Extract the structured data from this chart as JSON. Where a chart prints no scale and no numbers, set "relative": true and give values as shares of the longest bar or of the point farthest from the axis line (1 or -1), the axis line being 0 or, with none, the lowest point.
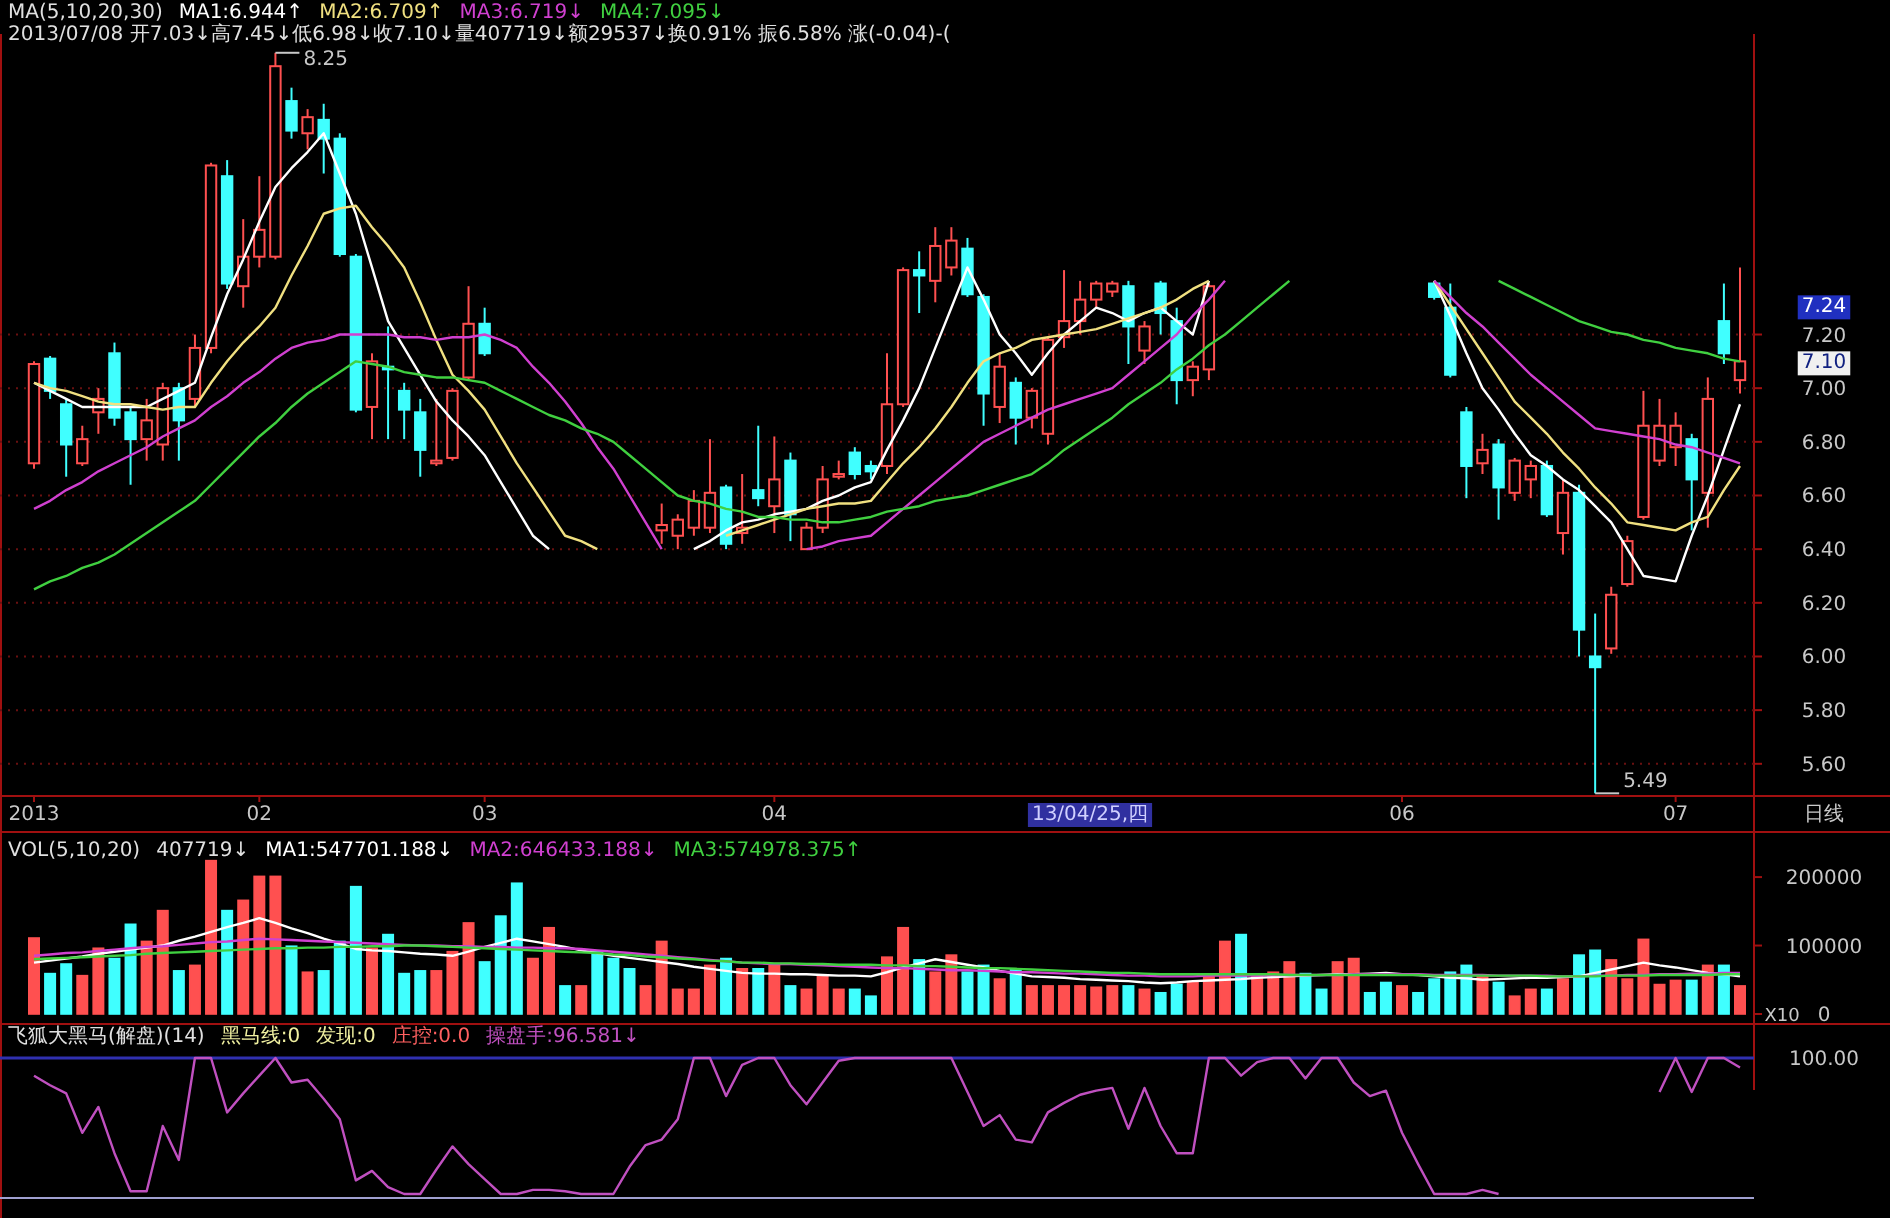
{
  "chart_data": [
    {
      "type": "candlestick",
      "title": "MA(5,10,20,30)",
      "subtitle": "2013/07/08 开7.03↓高7.45↓低6.98↓收7.10↓量407719↓额29537↓换0.91% 振6.58% 涨(-0.04)-(",
      "categories": [
        "2013",
        null,
        null,
        null,
        null,
        null,
        null,
        null,
        null,
        null,
        null,
        null,
        null,
        null,
        "02",
        null,
        null,
        null,
        null,
        null,
        null,
        null,
        null,
        null,
        null,
        null,
        null,
        null,
        "03",
        null,
        null,
        null,
        null,
        null,
        null,
        null,
        null,
        null,
        null,
        null,
        null,
        null,
        null,
        null,
        null,
        null,
        "04",
        null,
        null,
        null,
        null,
        null,
        null,
        null,
        null,
        null,
        null,
        null,
        null,
        null,
        null,
        null,
        null,
        null,
        null,
        null,
        null,
        null,
        null,
        null,
        null,
        null,
        null,
        null,
        null,
        null,
        null,
        null,
        null,
        null,
        null,
        null,
        null,
        null,
        null,
        "06",
        null,
        null,
        null,
        null,
        null,
        null,
        null,
        null,
        null,
        null,
        null,
        null,
        null,
        null,
        null,
        null,
        "07",
        null,
        null,
        null,
        null
      ],
      "ohlc": [
        [
          6.72,
          7.1,
          6.7,
          7.09
        ],
        [
          7.11,
          7.12,
          6.96,
          6.99
        ],
        [
          6.94,
          6.96,
          6.67,
          6.79
        ],
        [
          6.72,
          6.86,
          6.71,
          6.81
        ],
        [
          6.91,
          7.0,
          6.83,
          6.96
        ],
        [
          7.13,
          7.17,
          6.86,
          6.89
        ],
        [
          6.91,
          6.93,
          6.64,
          6.81
        ],
        [
          6.81,
          6.96,
          6.73,
          6.88
        ],
        [
          6.79,
          7.02,
          6.73,
          7.0
        ],
        [
          7.0,
          7.02,
          6.73,
          6.88
        ],
        [
          6.96,
          7.2,
          6.93,
          7.15
        ],
        [
          7.15,
          7.84,
          7.13,
          7.83
        ],
        [
          7.79,
          7.85,
          7.37,
          7.39
        ],
        [
          7.38,
          7.63,
          7.3,
          7.49
        ],
        [
          7.49,
          7.79,
          7.45,
          7.59
        ],
        [
          7.49,
          8.25,
          7.48,
          8.2
        ],
        [
          8.07,
          8.12,
          7.93,
          7.96
        ],
        [
          7.95,
          8.04,
          7.89,
          8.01
        ],
        [
          8.0,
          8.06,
          7.8,
          7.93
        ],
        [
          7.93,
          7.95,
          7.49,
          7.5
        ],
        [
          7.49,
          7.5,
          6.91,
          6.92
        ],
        [
          6.93,
          7.13,
          6.81,
          7.1
        ],
        [
          7.08,
          7.23,
          6.81,
          7.07
        ],
        [
          6.99,
          7.02,
          6.81,
          6.92
        ],
        [
          6.91,
          6.96,
          6.67,
          6.77
        ],
        [
          6.72,
          6.96,
          6.71,
          6.73
        ],
        [
          6.74,
          7.0,
          6.73,
          6.99
        ],
        [
          7.04,
          7.38,
          7.03,
          7.24
        ],
        [
          7.24,
          7.3,
          7.12,
          7.13
        ],
        null,
        null,
        null,
        null,
        null,
        null,
        null,
        null,
        null,
        null,
        [
          6.47,
          6.57,
          6.42,
          6.49
        ],
        [
          6.45,
          6.53,
          6.4,
          6.51
        ],
        [
          6.48,
          6.62,
          6.45,
          6.58
        ],
        [
          6.48,
          6.81,
          6.46,
          6.61
        ],
        [
          6.63,
          6.64,
          6.4,
          6.42
        ],
        [
          6.46,
          6.68,
          6.42,
          6.48
        ],
        [
          6.62,
          6.86,
          6.56,
          6.59
        ],
        [
          6.56,
          6.82,
          6.46,
          6.66
        ],
        [
          6.73,
          6.76,
          6.43,
          6.53
        ],
        [
          6.4,
          6.5,
          6.4,
          6.48
        ],
        [
          6.48,
          6.71,
          6.46,
          6.66
        ],
        [
          6.67,
          6.73,
          6.66,
          6.68
        ],
        [
          6.76,
          6.78,
          6.66,
          6.68
        ],
        [
          6.71,
          6.73,
          6.66,
          6.69
        ],
        [
          6.71,
          7.13,
          6.68,
          6.94
        ],
        [
          6.94,
          7.45,
          6.93,
          7.44
        ],
        [
          7.44,
          7.51,
          7.28,
          7.42
        ],
        [
          7.4,
          7.6,
          7.32,
          7.53
        ],
        [
          7.45,
          7.6,
          7.42,
          7.55
        ],
        [
          7.52,
          7.56,
          7.34,
          7.35
        ],
        [
          7.34,
          7.35,
          6.86,
          6.98
        ],
        [
          6.93,
          7.13,
          6.87,
          7.08
        ],
        [
          7.02,
          7.04,
          6.79,
          6.89
        ],
        [
          6.89,
          7.0,
          6.85,
          6.99
        ],
        [
          6.83,
          7.19,
          6.79,
          7.18
        ],
        [
          7.19,
          7.44,
          7.15,
          7.25
        ],
        [
          7.25,
          7.4,
          7.2,
          7.33
        ],
        [
          7.33,
          7.4,
          7.3,
          7.39
        ],
        [
          7.36,
          7.4,
          7.34,
          7.39
        ],
        [
          7.38,
          7.4,
          7.09,
          7.23
        ],
        [
          7.14,
          7.25,
          7.09,
          7.23
        ],
        [
          7.39,
          7.4,
          7.2,
          7.28
        ],
        [
          7.25,
          7.3,
          6.94,
          7.03
        ],
        [
          7.03,
          7.1,
          6.97,
          7.08
        ],
        [
          7.07,
          7.39,
          7.03,
          7.38
        ],
        null,
        null,
        null,
        null,
        null,
        null,
        null,
        null,
        null,
        null,
        null,
        null,
        null,
        [
          7.39,
          7.4,
          7.33,
          7.34
        ],
        [
          7.3,
          7.39,
          7.04,
          7.05
        ],
        [
          6.91,
          6.93,
          6.59,
          6.71
        ],
        [
          6.72,
          6.83,
          6.68,
          6.77
        ],
        [
          6.79,
          6.81,
          6.51,
          6.63
        ],
        [
          6.61,
          6.74,
          6.58,
          6.73
        ],
        [
          6.66,
          6.73,
          6.59,
          6.71
        ],
        [
          6.71,
          6.73,
          6.52,
          6.53
        ],
        [
          6.46,
          6.66,
          6.38,
          6.61
        ],
        [
          6.61,
          6.64,
          6.0,
          6.1
        ],
        [
          6.0,
          6.16,
          5.49,
          5.96
        ],
        [
          6.03,
          6.26,
          6.01,
          6.23
        ],
        [
          6.27,
          6.45,
          6.26,
          6.43
        ],
        [
          6.52,
          6.99,
          6.51,
          6.86
        ],
        [
          6.73,
          6.96,
          6.71,
          6.86
        ],
        [
          6.78,
          6.91,
          6.71,
          6.86
        ],
        [
          6.81,
          6.83,
          6.47,
          6.66
        ],
        [
          6.61,
          7.04,
          6.48,
          6.96
        ],
        [
          7.25,
          7.39,
          7.09,
          7.13
        ],
        [
          7.03,
          7.45,
          6.98,
          7.1
        ]
      ],
      "colors": [
        "#ff5050",
        "#40ffff",
        "#40ffff",
        "#ff5050",
        "#ff5050",
        "#40ffff",
        "#40ffff",
        "#ff5050",
        "#ff5050",
        "#40ffff",
        "#ff5050",
        "#ff5050",
        "#40ffff",
        "#ff5050",
        "#ff5050",
        "#ff5050",
        "#40ffff",
        "#ff5050",
        "#40ffff",
        "#40ffff",
        "#40ffff",
        "#ff5050",
        "#40ffff",
        "#40ffff",
        "#40ffff",
        "#ff5050",
        "#ff5050",
        "#ff5050",
        "#40ffff",
        null,
        null,
        null,
        null,
        null,
        null,
        null,
        null,
        null,
        null,
        "#ff5050",
        "#ff5050",
        "#ff5050",
        "#ff5050",
        "#40ffff",
        "#ff5050",
        "#40ffff",
        "#ff5050",
        "#40ffff",
        "#ff5050",
        "#ff5050",
        "#ff5050",
        "#40ffff",
        "#40ffff",
        "#ff5050",
        "#ff5050",
        "#40ffff",
        "#ff5050",
        "#ff5050",
        "#40ffff",
        "#40ffff",
        "#ff5050",
        "#40ffff",
        "#ff5050",
        "#ff5050",
        "#ff5050",
        "#ff5050",
        "#ff5050",
        "#ff5050",
        "#40ffff",
        "#ff5050",
        "#40ffff",
        "#40ffff",
        "#ff5050",
        "#ff5050",
        null,
        null,
        null,
        null,
        null,
        null,
        null,
        null,
        null,
        null,
        null,
        null,
        null,
        "#40ffff",
        "#40ffff",
        "#40ffff",
        "#ff5050",
        "#40ffff",
        "#ff5050",
        "#ff5050",
        "#40ffff",
        "#ff5050",
        "#40ffff",
        "#40ffff",
        "#ff5050",
        "#ff5050",
        "#ff5050",
        "#ff5050",
        "#ff5050",
        "#40ffff",
        "#ff5050",
        "#40ffff",
        "#ff5050"
      ],
      "series": [
        {
          "name": "MA1:6.944↑",
          "type": "line",
          "color": "#ffffff",
          "values": [
            7.02,
            6.99,
            6.96,
            6.93,
            6.93,
            6.93,
            6.93,
            6.93,
            6.96,
            6.99,
            7.02,
            7.19,
            7.35,
            7.48,
            7.62,
            7.75,
            7.82,
            7.88,
            7.95,
            7.8,
            7.65,
            7.45,
            7.25,
            7.15,
            7.05,
            6.95,
            6.88,
            6.82,
            6.75,
            6.65,
            6.55,
            6.45,
            6.4,
            null,
            null,
            null,
            null,
            null,
            null,
            null,
            null,
            6.4,
            6.43,
            6.47,
            6.5,
            6.51,
            6.53,
            6.54,
            6.55,
            6.58,
            6.6,
            6.63,
            6.65,
            6.77,
            6.88,
            7.0,
            7.15,
            7.3,
            7.45,
            7.33,
            7.2,
            7.13,
            7.05,
            7.13,
            7.2,
            7.25,
            7.3,
            7.28,
            7.25,
            7.28,
            7.3,
            7.25,
            7.2,
            7.4,
            null,
            null,
            null,
            null,
            null,
            null,
            null,
            null,
            null,
            null,
            null,
            null,
            null,
            7.4,
            7.27,
            7.13,
            7.0,
            6.92,
            6.83,
            6.75,
            6.71,
            6.66,
            6.62,
            6.56,
            6.5,
            6.4,
            6.3,
            6.29,
            6.28,
            6.45,
            6.6,
            6.77,
            6.94
          ]
        },
        {
          "name": "MA2:6.709↑",
          "type": "line",
          "color": "#f0e080",
          "values": [
            7.02,
            7.0,
            6.99,
            6.97,
            6.95,
            6.94,
            6.94,
            6.93,
            6.92,
            6.93,
            6.93,
            7.02,
            7.1,
            7.17,
            7.23,
            7.3,
            7.42,
            7.53,
            7.65,
            7.67,
            7.68,
            7.6,
            7.53,
            7.45,
            7.32,
            7.18,
            7.05,
            6.99,
            6.92,
            6.82,
            6.72,
            6.63,
            6.54,
            6.45,
            6.43,
            6.4,
            null,
            null,
            null,
            null,
            null,
            null,
            null,
            6.45,
            6.47,
            6.49,
            6.51,
            6.53,
            6.55,
            6.56,
            6.57,
            6.57,
            6.58,
            6.65,
            6.72,
            6.78,
            6.85,
            6.93,
            7.02,
            7.1,
            7.13,
            7.15,
            7.18,
            7.19,
            7.2,
            7.21,
            7.22,
            7.24,
            7.26,
            7.28,
            7.3,
            7.33,
            7.37,
            7.4,
            null,
            null,
            null,
            null,
            null,
            null,
            null,
            null,
            null,
            null,
            null,
            null,
            null,
            7.4,
            7.31,
            7.22,
            7.13,
            7.04,
            6.95,
            6.89,
            6.83,
            6.76,
            6.7,
            6.63,
            6.57,
            6.5,
            6.49,
            6.48,
            6.47,
            6.5,
            6.52,
            6.62,
            6.71
          ]
        },
        {
          "name": "MA3:6.719↓",
          "type": "line",
          "color": "#d040d0",
          "values": [
            6.55,
            6.58,
            6.62,
            6.65,
            6.69,
            6.72,
            6.75,
            6.78,
            6.82,
            6.85,
            6.88,
            6.93,
            6.97,
            7.02,
            7.06,
            7.11,
            7.15,
            7.17,
            7.18,
            7.2,
            7.2,
            7.2,
            7.2,
            7.19,
            7.19,
            7.18,
            7.19,
            7.19,
            7.2,
            7.18,
            7.15,
            7.08,
            7.02,
            6.95,
            6.87,
            6.78,
            6.7,
            6.6,
            6.5,
            6.4,
            null,
            null,
            null,
            null,
            null,
            null,
            null,
            null,
            6.4,
            6.41,
            6.43,
            6.44,
            6.45,
            6.5,
            6.55,
            6.6,
            6.65,
            6.7,
            6.75,
            6.8,
            6.83,
            6.86,
            6.89,
            6.92,
            6.94,
            6.96,
            6.98,
            7.0,
            7.05,
            7.1,
            7.15,
            7.2,
            7.27,
            7.33,
            7.4,
            null,
            null,
            null,
            null,
            null,
            null,
            null,
            null,
            null,
            null,
            null,
            null,
            7.4,
            7.34,
            7.28,
            7.23,
            7.17,
            7.11,
            7.05,
            7.0,
            6.95,
            6.9,
            6.85,
            6.84,
            6.83,
            6.82,
            6.81,
            6.79,
            6.78,
            6.76,
            6.74,
            6.72
          ]
        },
        {
          "name": "MA4:7.095↓",
          "type": "line",
          "color": "#40d040",
          "values": [
            6.25,
            6.28,
            6.3,
            6.33,
            6.35,
            6.38,
            6.42,
            6.46,
            6.5,
            6.54,
            6.58,
            6.64,
            6.7,
            6.76,
            6.82,
            6.87,
            6.93,
            6.98,
            7.02,
            7.06,
            7.1,
            7.09,
            7.08,
            7.06,
            7.05,
            7.04,
            7.04,
            7.03,
            7.02,
            6.99,
            6.96,
            6.93,
            6.9,
            6.88,
            6.85,
            6.83,
            6.8,
            6.75,
            6.7,
            6.65,
            6.6,
            6.58,
            6.57,
            6.55,
            6.54,
            6.52,
            6.52,
            6.51,
            6.51,
            6.5,
            6.5,
            6.51,
            6.52,
            6.54,
            6.55,
            6.56,
            6.58,
            6.59,
            6.6,
            6.62,
            6.64,
            6.66,
            6.68,
            6.72,
            6.77,
            6.81,
            6.85,
            6.89,
            6.94,
            6.98,
            7.02,
            7.07,
            7.11,
            7.16,
            7.2,
            7.25,
            7.3,
            7.35,
            7.4,
            null,
            null,
            null,
            null,
            null,
            null,
            null,
            null,
            null,
            null,
            null,
            null,
            7.4,
            7.37,
            7.34,
            7.31,
            7.28,
            7.25,
            7.23,
            7.21,
            7.2,
            7.18,
            7.17,
            7.15,
            7.14,
            7.13,
            7.11,
            7.1
          ]
        }
      ],
      "ylim": [
        5.48,
        8.32
      ],
      "yticks": [
        {
          "value": 5.6,
          "label": "5.60"
        },
        {
          "value": 5.8,
          "label": "5.80"
        },
        {
          "value": 6.0,
          "label": "6.00"
        },
        {
          "value": 6.2,
          "label": "6.20"
        },
        {
          "value": 6.4,
          "label": "6.40"
        },
        {
          "value": 6.6,
          "label": "6.60"
        },
        {
          "value": 6.8,
          "label": "6.80"
        },
        {
          "value": 7.0,
          "label": "7.00"
        },
        {
          "value": 7.2,
          "label": "7.20"
        }
      ],
      "grid": "y",
      "annotations": [
        "13/04/25,四",
        "日线",
        "8.25",
        "5.49",
        "7.24",
        "7.10"
      ]
    },
    {
      "type": "bar",
      "title": "VOL(5,10,20)",
      "categories": [
        null,
        null,
        null,
        null,
        null,
        null,
        null,
        null,
        null,
        null,
        null,
        null,
        null,
        null,
        null,
        null,
        null,
        null,
        null,
        null,
        null,
        null,
        null,
        null,
        null,
        null,
        null,
        null,
        null,
        null,
        null,
        null,
        null,
        null,
        null,
        null,
        null,
        null,
        null,
        null,
        null,
        null,
        null,
        null,
        null,
        null,
        null,
        null,
        null,
        null,
        null,
        null,
        null,
        null,
        null,
        null,
        null,
        null,
        null,
        null,
        null,
        null,
        null,
        null,
        null,
        null,
        null,
        null,
        null,
        null,
        null,
        null,
        null,
        null,
        null,
        null,
        null,
        null,
        null,
        null,
        null,
        null,
        null,
        null,
        null,
        null,
        null,
        null,
        null,
        null,
        null,
        null,
        null,
        null,
        null,
        null,
        null,
        null,
        null,
        null,
        null,
        null,
        null,
        null,
        null,
        null,
        null
      ],
      "series": [
        {
          "colors": [
            "#ff5050",
            "#40ffff",
            "#40ffff",
            "#ff5050",
            "#ff5050",
            "#40ffff",
            "#40ffff",
            "#ff5050",
            "#ff5050",
            "#40ffff",
            "#ff5050",
            "#ff5050",
            "#40ffff",
            "#ff5050",
            "#ff5050",
            "#ff5050",
            "#40ffff",
            "#ff5050",
            "#40ffff",
            "#40ffff",
            "#40ffff",
            "#ff5050",
            "#40ffff",
            "#40ffff",
            "#40ffff",
            "#ff5050",
            "#ff5050",
            "#ff5050",
            "#40ffff",
            "#40ffff",
            "#40ffff",
            "#ff5050",
            "#ff5050",
            "#40ffff",
            "#ff5050",
            "#40ffff",
            "#40ffff",
            "#40ffff",
            "#ff5050",
            "#ff5050",
            "#ff5050",
            "#ff5050",
            "#ff5050",
            "#40ffff",
            "#ff5050",
            "#40ffff",
            "#ff5050",
            "#40ffff",
            "#ff5050",
            "#ff5050",
            "#ff5050",
            "#40ffff",
            "#40ffff",
            "#ff5050",
            "#ff5050",
            "#40ffff",
            "#ff5050",
            "#ff5050",
            "#40ffff",
            "#40ffff",
            "#ff5050",
            "#40ffff",
            "#ff5050",
            "#ff5050",
            "#ff5050",
            "#ff5050",
            "#ff5050",
            "#ff5050",
            "#40ffff",
            "#ff5050",
            "#40ffff",
            "#40ffff",
            "#ff5050",
            "#ff5050",
            "#ff5050",
            "#40ffff",
            "#ff5050",
            "#ff5050",
            "#ff5050",
            "#40ffff",
            "#40ffff",
            "#ff5050",
            "#ff5050",
            "#40ffff",
            "#40ffff",
            "#ff5050",
            "#40ffff",
            "#40ffff",
            "#40ffff",
            "#40ffff",
            "#ff5050",
            "#40ffff",
            "#ff5050",
            "#ff5050",
            "#40ffff",
            "#ff5050",
            "#40ffff",
            "#40ffff",
            "#ff5050",
            "#ff5050",
            "#ff5050",
            "#ff5050",
            "#ff5050",
            "#40ffff",
            "#ff5050",
            "#40ffff",
            "#ff5050"
          ],
          "values": [
            111000,
            59000,
            73000,
            56000,
            96000,
            81000,
            131000,
            106000,
            151000,
            63000,
            71000,
            224000,
            151000,
            166000,
            201000,
            201000,
            99000,
            61000,
            63000,
            106000,
            186000,
            96000,
            116000,
            59000,
            63000,
            63000,
            91000,
            133000,
            76000,
            143000,
            191000,
            81000,
            126000,
            41000,
            41000,
            91000,
            81000,
            66000,
            41000,
            106000,
            36000,
            36000,
            71000,
            81000,
            66000,
            66000,
            71000,
            41000,
            36000,
            56000,
            36000,
            36000,
            26000,
            83000,
            126000,
            79000,
            61000,
            86000,
            61000,
            71000,
            51000,
            66000,
            41000,
            41000,
            41000,
            41000,
            39000,
            41000,
            41000,
            36000,
            31000,
            43000,
            46000,
            56000,
            106000,
            116000,
            56000,
            61000,
            76000,
            59000,
            36000,
            76000,
            81000,
            31000,
            46000,
            41000,
            31000,
            51000,
            61000,
            71000,
            56000,
            46000,
            26000,
            36000,
            36000,
            51000,
            86000,
            93000,
            79000,
            51000,
            109000,
            43000,
            49000,
            49000,
            71000,
            71000,
            41000
          ]
        },
        {
          "name": "MA1:547701.188↓",
          "type": "line",
          "color": "#ffffff",
          "values": [
            75000,
            78000,
            81000,
            84000,
            88000,
            91000,
            94000,
            97000,
            100000,
            107000,
            113000,
            120000,
            127000,
            133000,
            140000,
            133000,
            125000,
            118000,
            110000,
            103000,
            95000,
            93000,
            92000,
            90000,
            88000,
            87000,
            85000,
            91000,
            98000,
            104000,
            110000,
            106000,
            102000,
            98000,
            93000,
            89000,
            85000,
            82000,
            79000,
            76000,
            73000,
            69000,
            66000,
            63000,
            60000,
            59000,
            59000,
            58000,
            58000,
            57000,
            56000,
            56000,
            55000,
            61000,
            68000,
            74000,
            80000,
            76000,
            72000,
            68000,
            63000,
            59000,
            55000,
            54000,
            53000,
            51000,
            50000,
            49000,
            48000,
            46000,
            45000,
            46000,
            48000,
            49000,
            50000,
            51000,
            53000,
            54000,
            55000,
            56000,
            57000,
            58000,
            58000,
            59000,
            60000,
            58000,
            57000,
            55000,
            53000,
            52000,
            50000,
            51000,
            52000,
            53000,
            53000,
            54000,
            55000,
            60000,
            65000,
            70000,
            75000,
            71000,
            68000,
            64000,
            60000,
            58000,
            55000
          ]
        },
        {
          "name": "MA2:646433.188↓",
          "type": "line",
          "color": "#d040d0",
          "values": [
            85000,
            87000,
            89000,
            90000,
            92000,
            94000,
            96000,
            98000,
            99000,
            101000,
            103000,
            105000,
            106000,
            108000,
            110000,
            109000,
            108000,
            107000,
            106000,
            105000,
            104000,
            103000,
            102000,
            101000,
            100000,
            100000,
            99000,
            99000,
            98000,
            98000,
            97000,
            97000,
            96000,
            96000,
            95000,
            93000,
            91000,
            89000,
            87000,
            85000,
            83000,
            81000,
            79000,
            77000,
            75000,
            74000,
            73000,
            73000,
            72000,
            71000,
            70000,
            69000,
            68000,
            67000,
            67000,
            66000,
            65000,
            64000,
            64000,
            63000,
            62000,
            61000,
            61000,
            60000,
            59000,
            59000,
            58000,
            57000,
            56000,
            56000,
            55000,
            55000,
            55000,
            56000,
            56000,
            56000,
            56000,
            57000,
            57000,
            57000,
            57000,
            57000,
            58000,
            58000,
            58000,
            58000,
            58000,
            57000,
            57000,
            57000,
            57000,
            56000,
            56000,
            56000,
            56000,
            55000,
            55000,
            56000,
            56000,
            57000,
            57000,
            58000,
            58000,
            59000,
            59000,
            60000,
            60000
          ]
        },
        {
          "name": "MA3:574978.375↑",
          "type": "line",
          "color": "#40d040",
          "values": [
            80000,
            81000,
            82000,
            83000,
            84000,
            85000,
            86000,
            88000,
            89000,
            90000,
            91000,
            92000,
            93000,
            94000,
            95000,
            96000,
            96000,
            97000,
            97000,
            98000,
            98000,
            99000,
            99000,
            100000,
            100000,
            99000,
            98000,
            97000,
            96000,
            95000,
            94000,
            93000,
            92000,
            91000,
            90000,
            89000,
            87000,
            86000,
            84000,
            83000,
            81000,
            80000,
            78000,
            77000,
            75000,
            75000,
            74000,
            74000,
            73000,
            73000,
            72000,
            72000,
            72000,
            71000,
            71000,
            70000,
            70000,
            69000,
            68000,
            67000,
            67000,
            66000,
            65000,
            64000,
            63000,
            62000,
            61000,
            60000,
            60000,
            59000,
            58000,
            58000,
            58000,
            58000,
            58000,
            58000,
            58000,
            58000,
            57000,
            57000,
            57000,
            57000,
            57000,
            57000,
            57000,
            57000,
            57000,
            56000,
            56000,
            56000,
            56000,
            56000,
            56000,
            56000,
            55000,
            55000,
            55000,
            55000,
            56000,
            56000,
            56000,
            57000,
            57000,
            57000,
            57000,
            58000,
            58000
          ]
        }
      ],
      "ylim": [
        0,
        260000
      ],
      "yticks": [
        0,
        100000,
        200000
      ],
      "tick_labels": "y",
      "annotations": [
        "407719↓",
        "X10"
      ]
    },
    {
      "type": "line",
      "title": "飞狐大黑马(解盘)(14)",
      "relative": true,
      "categories": [
        null,
        null,
        null,
        null,
        null,
        null,
        null,
        null,
        null,
        null,
        null,
        null,
        null,
        null,
        null,
        null,
        null,
        null,
        null,
        null,
        null,
        null,
        null,
        null,
        null,
        null,
        null,
        null,
        null,
        null,
        null,
        null,
        null,
        null,
        null,
        null,
        null,
        null,
        null,
        null,
        null,
        null,
        null,
        null,
        null,
        null,
        null,
        null,
        null,
        null,
        null,
        null,
        null,
        null,
        null,
        null,
        null,
        null,
        null,
        null,
        null,
        null,
        null,
        null,
        null,
        null,
        null,
        null,
        null,
        null,
        null,
        null,
        null,
        null,
        null,
        null,
        null,
        null,
        null,
        null,
        null,
        null,
        null,
        null,
        null,
        null,
        null,
        null,
        null,
        null,
        null,
        null,
        null,
        null,
        null,
        null,
        null,
        null,
        null,
        null,
        null,
        null,
        null,
        null,
        null,
        null,
        null
      ],
      "series": [
        {
          "name": "操盘手:96.581↓",
          "color": "#c050c0",
          "values": [
            0.87,
            0.8,
            0.74,
            0.45,
            0.64,
            0.3,
            0.02,
            0.02,
            0.5,
            0.25,
            1,
            1,
            0.6,
            0.74,
            0.87,
            1,
            0.82,
            0.84,
            0.7,
            0.55,
            0.1,
            0.17,
            0.05,
            0,
            0,
            0.18,
            0.35,
            0.22,
            0.11,
            0,
            0,
            0.03,
            0.03,
            0.02,
            0,
            0,
            0,
            0.2,
            0.36,
            0.4,
            0.55,
            1,
            1,
            0.72,
            0.95,
            1,
            1,
            0.8,
            0.66,
            0.82,
            0.98,
            1,
            1,
            1,
            1,
            1,
            1,
            1,
            0.75,
            0.5,
            0.58,
            0.4,
            0.38,
            0.6,
            0.67,
            0.73,
            0.76,
            0.78,
            0.48,
            0.78,
            0.5,
            0.3,
            0.3,
            1,
            1,
            0.87,
            0.97,
            1,
            1,
            0.85,
            1,
            1,
            0.82,
            0.72,
            0.76,
            0.45,
            0.22,
            0,
            0,
            0,
            0.03,
            0,
            null,
            null,
            null,
            null,
            null,
            null,
            null,
            null,
            null,
            0.75,
            1,
            0.75,
            1,
            1,
            0.93
          ]
        }
      ],
      "ref_lines": [
        {
          "axis": "y",
          "value": 1,
          "label": "100.00",
          "color": "#3030b0"
        }
      ],
      "tick_labels": false,
      "annotations": [
        "黑马线:0",
        "发现:0",
        "庄控:0.0"
      ]
    }
  ]
}
